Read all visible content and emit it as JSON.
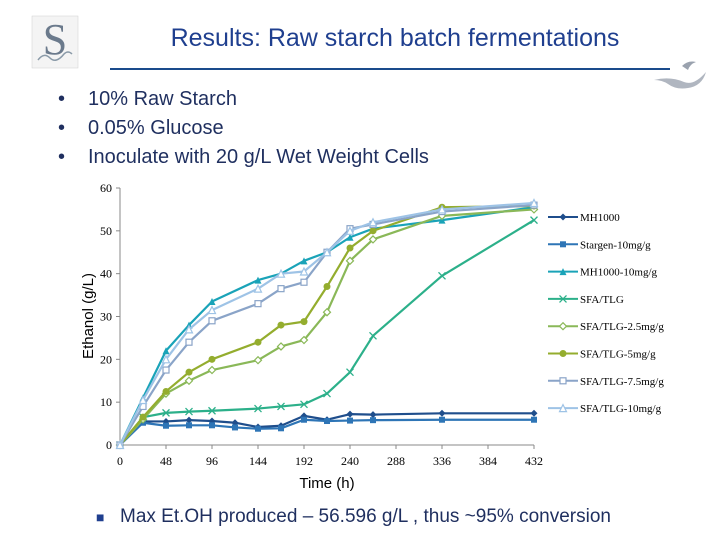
{
  "header": {
    "title": "Results: Raw starch batch fermentations",
    "logo_text": "S",
    "accent_color": "#1f3f8f"
  },
  "bullets": [
    "10% Raw Starch",
    "0.05% Glucose",
    "Inoculate with 20 g/L  Wet Weight Cells"
  ],
  "footer": {
    "text": "Max Et.OH produced – 56.596 g/L , thus ~95% conversion"
  },
  "chart_data": {
    "type": "line",
    "title": "",
    "xlabel": "Time (h)",
    "ylabel": "Ethanol (g/L)",
    "xlim": [
      0,
      432
    ],
    "ylim": [
      0,
      60
    ],
    "xticks": [
      0,
      48,
      96,
      144,
      192,
      240,
      288,
      336,
      384,
      432
    ],
    "yticks": [
      0,
      10,
      20,
      30,
      40,
      50,
      60
    ],
    "grid": false,
    "legend_position": "right",
    "series": [
      {
        "name": "MH1000",
        "color": "#1f4e8c",
        "marker": "diamond",
        "x": [
          0,
          24,
          48,
          72,
          96,
          120,
          144,
          168,
          192,
          216,
          240,
          264,
          336,
          432
        ],
        "y": [
          0,
          5.5,
          5.5,
          5.8,
          5.6,
          5.2,
          4.2,
          4.5,
          6.8,
          5.9,
          7.2,
          7.1,
          7.4,
          7.4
        ]
      },
      {
        "name": "Stargen-10mg/g",
        "color": "#2e75b6",
        "marker": "square",
        "x": [
          0,
          24,
          48,
          72,
          96,
          120,
          144,
          168,
          192,
          216,
          240,
          264,
          336,
          432
        ],
        "y": [
          0,
          5.2,
          4.5,
          4.6,
          4.6,
          4.1,
          3.8,
          3.9,
          5.9,
          5.6,
          5.7,
          5.8,
          5.9,
          5.9
        ]
      },
      {
        "name": "MH1000-10mg/g",
        "color": "#1aa3b8",
        "marker": "triangle",
        "x": [
          0,
          24,
          48,
          72,
          96,
          144,
          168,
          192,
          216,
          240,
          264,
          336,
          432
        ],
        "y": [
          0,
          11,
          22,
          28,
          33.5,
          38.5,
          40,
          43,
          45,
          48.5,
          50.5,
          52.5,
          55.5
        ]
      },
      {
        "name": "SFA/TLG",
        "color": "#2cb08a",
        "marker": "cross",
        "x": [
          0,
          24,
          48,
          72,
          96,
          144,
          168,
          192,
          216,
          240,
          264,
          336,
          432
        ],
        "y": [
          0,
          6.5,
          7.5,
          7.8,
          8,
          8.5,
          9,
          9.5,
          12,
          17,
          25.5,
          39.5,
          52.5
        ]
      },
      {
        "name": "SFA/TLG-2.5mg/g",
        "color": "#8ab858",
        "marker": "diamond-open",
        "x": [
          0,
          24,
          48,
          72,
          96,
          144,
          168,
          192,
          216,
          240,
          264,
          336,
          432
        ],
        "y": [
          0,
          6,
          12,
          15,
          17.5,
          19.8,
          23,
          24.5,
          31,
          43,
          48,
          53.5,
          55
        ]
      },
      {
        "name": "SFA/TLG-5mg/g",
        "color": "#94ad2e",
        "marker": "circle",
        "x": [
          0,
          24,
          48,
          72,
          96,
          144,
          168,
          192,
          216,
          240,
          264,
          336,
          432
        ],
        "y": [
          0,
          6.5,
          12.5,
          17,
          20,
          24,
          28,
          28.8,
          37,
          46,
          50,
          55.5,
          55.8
        ]
      },
      {
        "name": "SFA/TLG-7.5mg/g",
        "color": "#8aa4c8",
        "marker": "square-open",
        "x": [
          0,
          24,
          48,
          72,
          96,
          144,
          168,
          192,
          216,
          240,
          264,
          336,
          432
        ],
        "y": [
          0,
          9,
          17.5,
          24,
          29,
          33,
          36.5,
          38,
          45,
          50.5,
          51.5,
          54.5,
          56
        ]
      },
      {
        "name": "SFA/TLG-10mg/g",
        "color": "#9ec3e6",
        "marker": "triangle-open",
        "x": [
          0,
          24,
          48,
          72,
          96,
          144,
          168,
          192,
          216,
          240,
          264,
          336,
          432
        ],
        "y": [
          0,
          10.5,
          20,
          27,
          31.5,
          36.5,
          40,
          40.5,
          45,
          50,
          52,
          55,
          56.5
        ]
      }
    ]
  }
}
